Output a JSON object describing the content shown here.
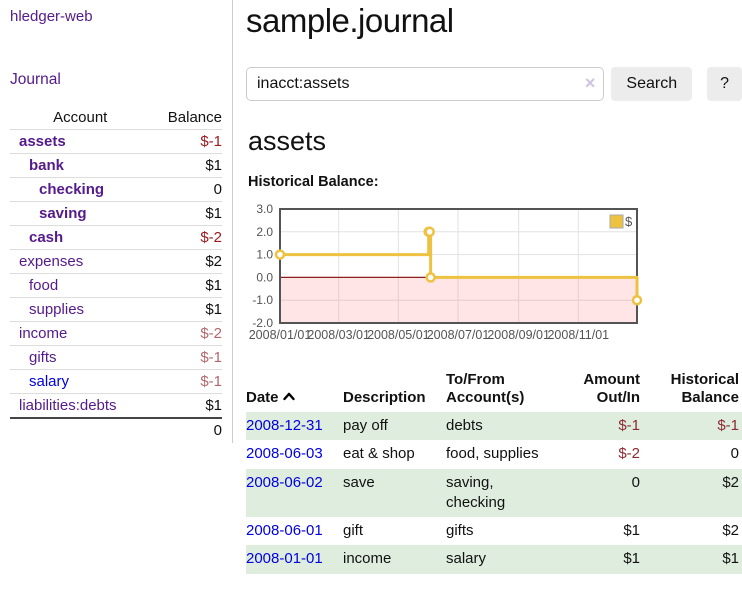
{
  "colors": {
    "link_purple": "#551a8b",
    "link_blue": "#0000e0",
    "negative_strong": "#9c1a22",
    "negative_muted": "#b2686c",
    "negative_table": "#8c2b31",
    "stripe_green": "#dfeddf"
  },
  "sidebar": {
    "app_title": "hledger-web",
    "nav": {
      "journal_label": "Journal"
    },
    "table": {
      "headers": {
        "account": "Account",
        "balance": "Balance"
      },
      "accounts": [
        {
          "name": "assets",
          "indent": 1,
          "bold": true,
          "balance": "$-1",
          "style": "neg"
        },
        {
          "name": "bank",
          "indent": 2,
          "bold": true,
          "balance": "$1",
          "style": "pos"
        },
        {
          "name": "checking",
          "indent": 3,
          "bold": true,
          "balance": "0",
          "style": "pos"
        },
        {
          "name": "saving",
          "indent": 3,
          "bold": true,
          "balance": "$1",
          "style": "pos"
        },
        {
          "name": "cash",
          "indent": 2,
          "bold": true,
          "balance": "$-2",
          "style": "neg"
        },
        {
          "name": "expenses",
          "indent": 1,
          "bold": false,
          "balance": "$2",
          "style": "pos"
        },
        {
          "name": "food",
          "indent": 2,
          "bold": false,
          "balance": "$1",
          "style": "pos"
        },
        {
          "name": "supplies",
          "indent": 2,
          "bold": false,
          "balance": "$1",
          "style": "pos"
        },
        {
          "name": "income",
          "indent": 1,
          "bold": false,
          "balance": "$-2",
          "style": "neg-muted"
        },
        {
          "name": "gifts",
          "indent": 2,
          "bold": false,
          "balance": "$-1",
          "style": "neg-muted"
        },
        {
          "name": "salary",
          "indent": 2,
          "bold": false,
          "unvisited": true,
          "balance": "$-1",
          "style": "neg-muted"
        },
        {
          "name": "liabilities:debts",
          "indent": 1,
          "bold": false,
          "balance": "$1",
          "style": "pos"
        }
      ],
      "total": "0"
    }
  },
  "main": {
    "title": "sample.journal",
    "search": {
      "value": "inacct:assets",
      "clear_icon": "×",
      "button_label": "Search",
      "help_label": "?"
    },
    "account_heading": "assets",
    "chart_heading": "Historical Balance:",
    "register": {
      "headers": {
        "date": "Date",
        "description": "Description",
        "accounts": "To/From Account(s)",
        "amount": "Amount Out/In",
        "balance": "Historical Balance"
      },
      "rows": [
        {
          "date": "2008-12-31",
          "description": "pay off",
          "accounts": "debts",
          "amount": "$-1",
          "amount_negative": true,
          "balance": "$-1",
          "balance_negative": true,
          "shaded": true
        },
        {
          "date": "2008-06-03",
          "description": "eat & shop",
          "accounts": "food, supplies",
          "amount": "$-2",
          "amount_negative": true,
          "balance": "0",
          "balance_negative": false,
          "shaded": false
        },
        {
          "date": "2008-06-02",
          "description": "save",
          "accounts": "saving, checking",
          "amount": "0",
          "amount_negative": false,
          "balance": "$2",
          "balance_negative": false,
          "shaded": true
        },
        {
          "date": "2008-06-01",
          "description": "gift",
          "accounts": "gifts",
          "amount": "$1",
          "amount_negative": false,
          "balance": "$2",
          "balance_negative": false,
          "shaded": false
        },
        {
          "date": "2008-01-01",
          "description": "income",
          "accounts": "salary",
          "amount": "$1",
          "amount_negative": false,
          "balance": "$1",
          "balance_negative": false,
          "shaded": true
        }
      ]
    }
  },
  "chart_data": {
    "type": "line",
    "style": "step",
    "title": "Historical Balance:",
    "xlabel": "",
    "ylabel": "",
    "xlim_days": [
      0,
      365
    ],
    "ylim": [
      -2,
      3
    ],
    "grid": true,
    "grid_color": "#e2e2e2",
    "border_color": "#545454",
    "zero_line_color": "#8e1f1f",
    "negative_region_color": "rgba(255,100,100,0.17)",
    "legend_position": "top-right",
    "series": [
      {
        "name": "$",
        "color": "#edc240",
        "points": [
          {
            "date": "2008-01-01",
            "day": 0,
            "value": 1
          },
          {
            "date": "2008-06-01",
            "day": 152,
            "value": 2
          },
          {
            "date": "2008-06-02",
            "day": 153,
            "value": 2
          },
          {
            "date": "2008-06-03",
            "day": 154,
            "value": 0
          },
          {
            "date": "2008-12-31",
            "day": 365,
            "value": -1
          }
        ]
      }
    ],
    "x_ticks": [
      {
        "label": "2008/01/01",
        "day": 0
      },
      {
        "label": "2008/03/01",
        "day": 60
      },
      {
        "label": "2008/05/01",
        "day": 121
      },
      {
        "label": "2008/07/01",
        "day": 182
      },
      {
        "label": "2008/09/01",
        "day": 244
      },
      {
        "label": "2008/11/01",
        "day": 305
      }
    ],
    "y_ticks": [
      {
        "label": "3.0",
        "value": 3
      },
      {
        "label": "2.0",
        "value": 2
      },
      {
        "label": "1.0",
        "value": 1
      },
      {
        "label": "0.0",
        "value": 0
      },
      {
        "label": "-1.0",
        "value": -1
      },
      {
        "label": "-2.0",
        "value": -2
      }
    ]
  }
}
